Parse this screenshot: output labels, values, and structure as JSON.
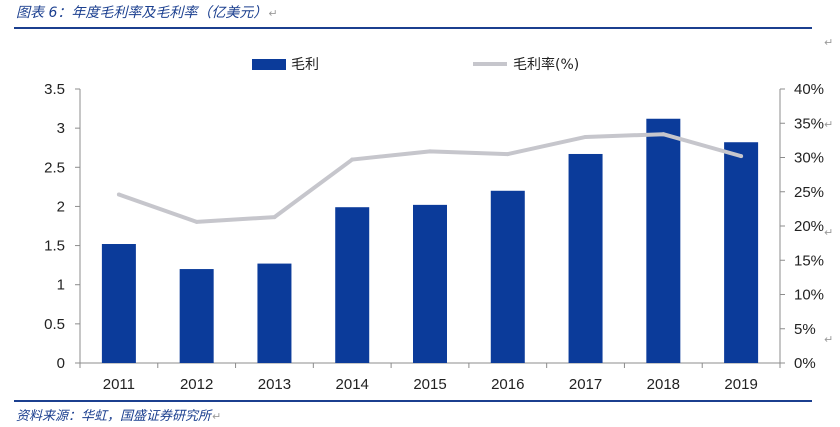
{
  "figure": {
    "title": "图表 6：年度毛利率及毛利率（亿美元）",
    "source": "资料来源：华虹，国盛证券研究所",
    "para_mark": "↵"
  },
  "colors": {
    "bar": "#0b3b9a",
    "line": "#c6c6cc",
    "rule": "#1b3f8f"
  },
  "chart_data": {
    "type": "bar",
    "categories": [
      "2011",
      "2012",
      "2013",
      "2014",
      "2015",
      "2016",
      "2017",
      "2018",
      "2019"
    ],
    "series": [
      {
        "name": "毛利",
        "type": "bar",
        "axis": "left",
        "values": [
          1.52,
          1.2,
          1.27,
          1.99,
          2.02,
          2.2,
          2.67,
          3.12,
          2.82
        ]
      },
      {
        "name": "毛利率(%)",
        "type": "line",
        "axis": "right",
        "values": [
          24.6,
          20.6,
          21.3,
          29.7,
          30.9,
          30.5,
          33.0,
          33.4,
          30.2
        ]
      }
    ],
    "ylim": [
      0,
      3.5
    ],
    "y_ticks": [
      "0",
      "0.5",
      "1",
      "1.5",
      "2",
      "2.5",
      "3",
      "3.5"
    ],
    "y2lim": [
      0,
      40
    ],
    "y2_ticks": [
      "0%",
      "5%",
      "10%",
      "15%",
      "20%",
      "25%",
      "30%",
      "35%",
      "40%"
    ],
    "legend_position": "top-center",
    "grid": false
  }
}
